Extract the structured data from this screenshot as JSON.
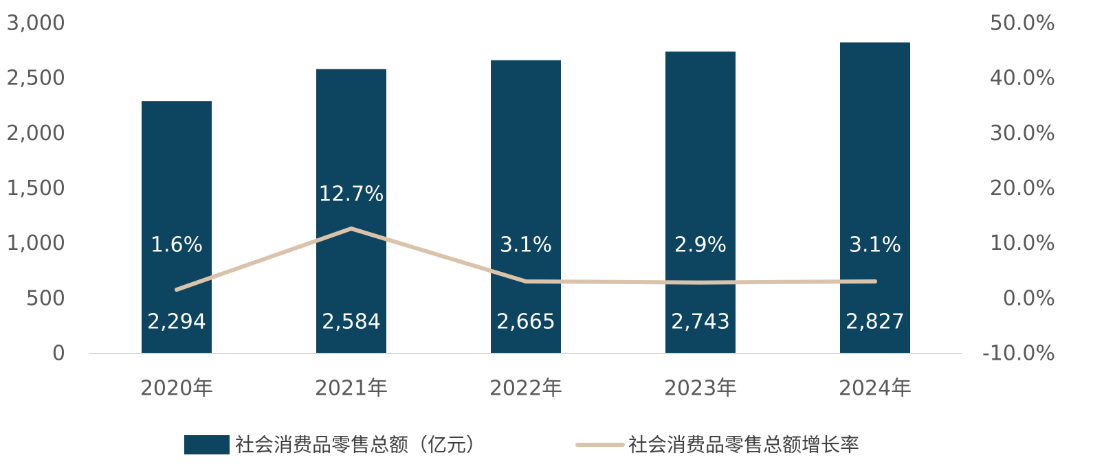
{
  "chart_data": {
    "type": "bar",
    "categories": [
      "2020年",
      "2021年",
      "2022年",
      "2023年",
      "2024年"
    ],
    "series": [
      {
        "name": "社会消费品零售总额（亿元）",
        "type": "bar",
        "axis": "left",
        "values": [
          2294,
          2584,
          2665,
          2743,
          2827
        ],
        "value_labels": [
          "2,294",
          "2,584",
          "2,665",
          "2,743",
          "2,827"
        ],
        "color": "#0d4460"
      },
      {
        "name": "社会消费品零售总额增长率",
        "type": "line",
        "axis": "right",
        "values": [
          1.6,
          12.7,
          3.1,
          2.9,
          3.1
        ],
        "value_labels": [
          "1.6%",
          "12.7%",
          "3.1%",
          "2.9%",
          "3.1%"
        ],
        "color": "#d9c3aa"
      }
    ],
    "y_left": {
      "range": [
        0,
        3000
      ],
      "ticks": [
        0,
        500,
        1000,
        1500,
        2000,
        2500,
        3000
      ],
      "tick_labels": [
        "0",
        "500",
        "1,000",
        "1,500",
        "2,000",
        "2,500",
        "3,000"
      ]
    },
    "y_right": {
      "range": [
        -10,
        50
      ],
      "ticks": [
        -10,
        0,
        10,
        20,
        30,
        40,
        50
      ],
      "tick_labels": [
        "-10.0%",
        "0.0%",
        "10.0%",
        "20.0%",
        "30.0%",
        "40.0%",
        "50.0%"
      ]
    },
    "title": "",
    "xlabel": "",
    "ylabel": "",
    "grid": false,
    "legend_position": "bottom"
  }
}
